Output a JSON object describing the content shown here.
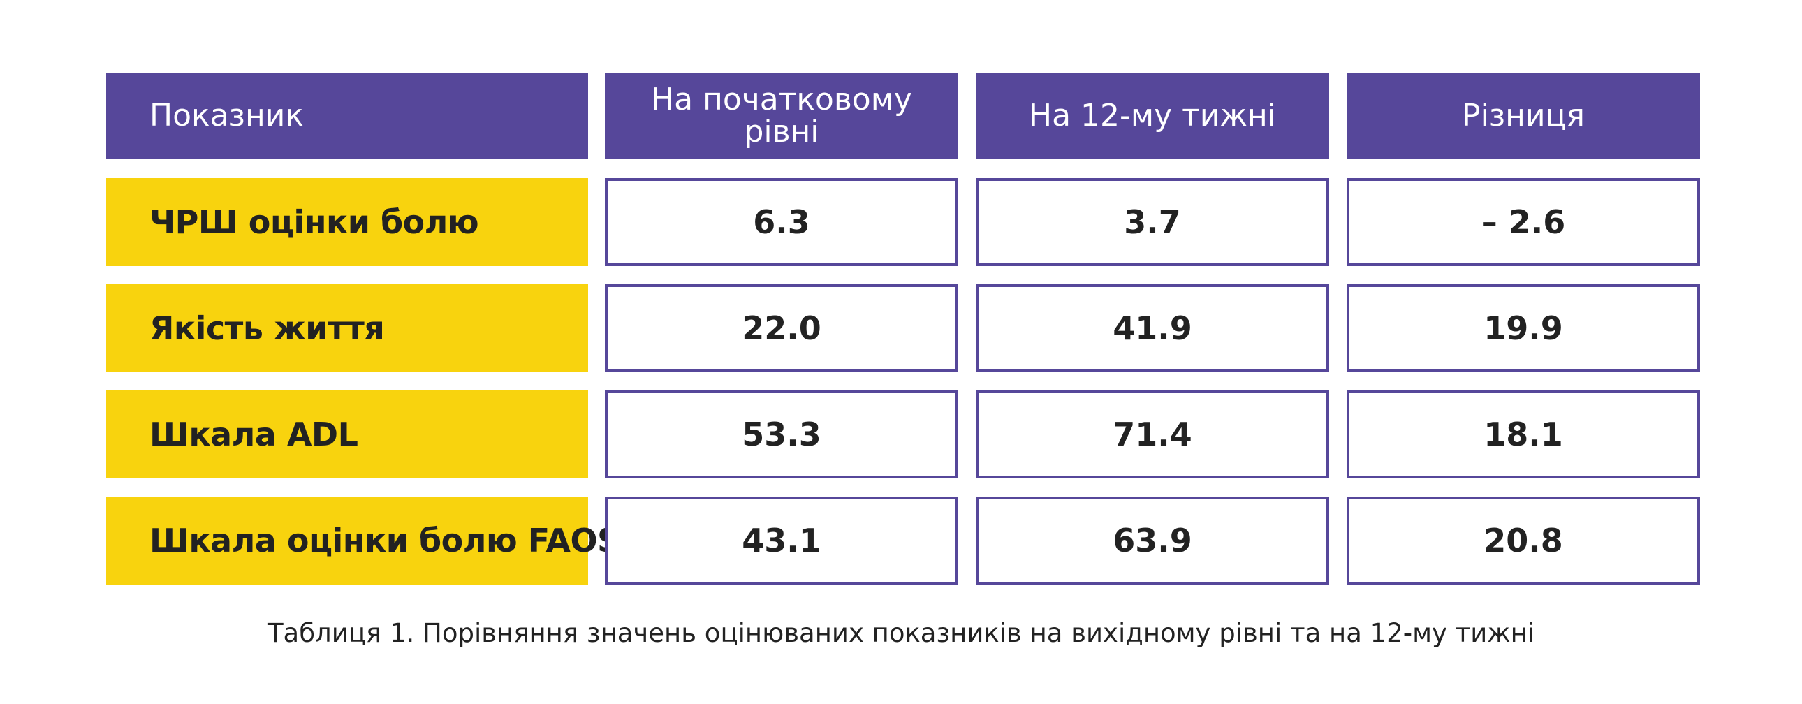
{
  "table": {
    "headers": [
      "Показник",
      "На початковому рівні",
      "На 12-му тижні",
      "Різниця"
    ],
    "rows": [
      {
        "label": "ЧРШ оцінки болю",
        "values": [
          "6.3",
          "3.7",
          "– 2.6"
        ]
      },
      {
        "label": "Якість життя",
        "values": [
          "22.0",
          "41.9",
          "19.9"
        ]
      },
      {
        "label": "Шкала ADL",
        "values": [
          "53.3",
          "71.4",
          "18.1"
        ]
      },
      {
        "label": "Шкала оцінки болю FAOS",
        "values": [
          "43.1",
          "63.9",
          "20.8"
        ]
      }
    ]
  },
  "caption": "Таблиця 1. Порівняння значень оцінюваних показників на вихідному рівні та на 12-му тижні",
  "colors": {
    "header_bg": "#56479a",
    "label_bg": "#f8d30e",
    "cell_border": "#56479a"
  }
}
